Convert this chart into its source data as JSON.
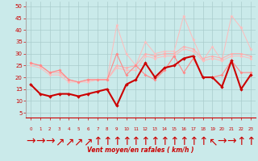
{
  "x": [
    0,
    1,
    2,
    3,
    4,
    5,
    6,
    7,
    8,
    9,
    10,
    11,
    12,
    13,
    14,
    15,
    16,
    17,
    18,
    19,
    20,
    21,
    22,
    23
  ],
  "line_gust": [
    26,
    25,
    22,
    23,
    19,
    18,
    19,
    19,
    19,
    42,
    30,
    25,
    35,
    30,
    31,
    31,
    46,
    36,
    27,
    33,
    27,
    46,
    41,
    32
  ],
  "line_upper": [
    26,
    25,
    22,
    22,
    19,
    18,
    19,
    19,
    19,
    25,
    24,
    25,
    30,
    29,
    30,
    30,
    33,
    32,
    28,
    29,
    28,
    30,
    30,
    29
  ],
  "line_mid": [
    25,
    24,
    21,
    21,
    18,
    18,
    18,
    19,
    19,
    24,
    23,
    23,
    29,
    28,
    29,
    29,
    32,
    31,
    27,
    28,
    27,
    29,
    29,
    28
  ],
  "line_avg": [
    26,
    25,
    22,
    23,
    19,
    18,
    19,
    19,
    19,
    30,
    21,
    25,
    21,
    19,
    23,
    29,
    22,
    28,
    20,
    20,
    21,
    27,
    22,
    22
  ],
  "line_wind": [
    17,
    13,
    12,
    13,
    13,
    12,
    13,
    14,
    15,
    8,
    17,
    19,
    26,
    20,
    24,
    25,
    28,
    29,
    20,
    20,
    16,
    27,
    15,
    21
  ],
  "wind_arrows": [
    "→",
    "→",
    "→",
    "↗",
    "↗",
    "↗",
    "↗",
    "↑",
    "↑",
    "↑",
    "↑",
    "↑",
    "↑",
    "↑",
    "↑",
    "↑",
    "↑",
    "↑",
    "↑",
    "↖",
    "→",
    "→",
    "↑",
    "↑"
  ],
  "yticks": [
    5,
    10,
    15,
    20,
    25,
    30,
    35,
    40,
    45,
    50
  ],
  "xlabel": "Vent moyen/en rafales ( km/h )",
  "bg_color": "#caeaea",
  "grid_color": "#aacccc",
  "c_gust": "#ffbbbb",
  "c_upper": "#ff9999",
  "c_mid": "#ffbbbb",
  "c_avg": "#ff8888",
  "c_wind": "#cc0000"
}
